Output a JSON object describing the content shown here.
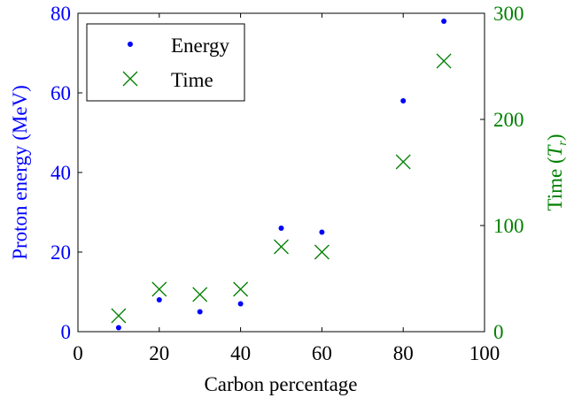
{
  "colors": {
    "energy": "#0000FF",
    "time": "#008000",
    "axis": "#000000",
    "background": "#FFFFFF"
  },
  "chart_data": {
    "type": "scatter",
    "xlabel": "Carbon percentage",
    "ylabel_left": "Proton energy (MeV)",
    "ylabel_right_prefix": "Time (",
    "ylabel_right_symbol": "T",
    "ylabel_right_subscript": "r",
    "ylabel_right_suffix": ")",
    "xlim": [
      0,
      100
    ],
    "ylim_left": [
      0,
      80
    ],
    "ylim_right": [
      0,
      300
    ],
    "xticks": [
      0,
      20,
      40,
      60,
      80,
      100
    ],
    "yticks_left": [
      0,
      20,
      40,
      60,
      80
    ],
    "yticks_right": [
      0,
      100,
      200,
      300
    ],
    "grid": false,
    "legend_position": "top-left",
    "series": [
      {
        "name": "Energy",
        "axis": "left",
        "marker": "dot",
        "x": [
          10,
          20,
          30,
          40,
          50,
          60,
          80,
          90
        ],
        "y": [
          1,
          8,
          5,
          7,
          26,
          25,
          58,
          78
        ]
      },
      {
        "name": "Time",
        "axis": "right",
        "marker": "x",
        "x": [
          10,
          20,
          30,
          40,
          50,
          60,
          80,
          90
        ],
        "y": [
          15,
          40,
          35,
          40,
          80,
          75,
          160,
          255
        ]
      }
    ]
  }
}
